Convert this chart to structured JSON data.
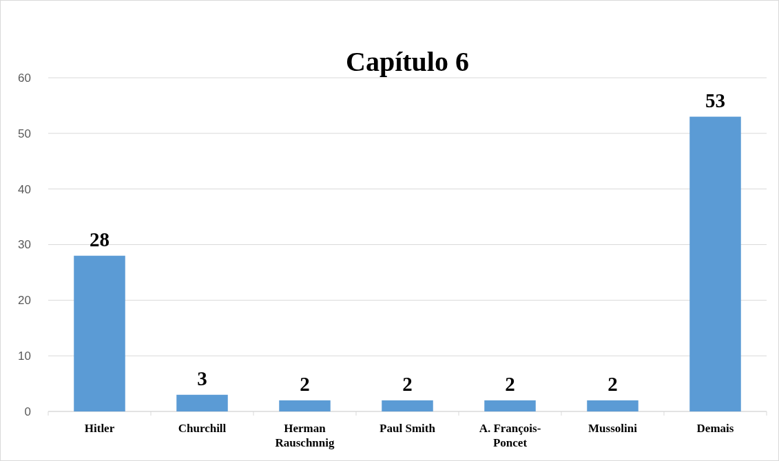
{
  "chart_data": {
    "type": "bar",
    "title": "Capítulo 6",
    "categories": [
      "Hitler",
      "Churchill",
      "Herman Rauschnnig",
      "Paul Smith",
      "A. François-Poncet",
      "Mussolini",
      "Demais"
    ],
    "values": [
      28,
      3,
      2,
      2,
      2,
      2,
      53
    ],
    "color": "#5b9bd5",
    "ylim": [
      0,
      60
    ],
    "yticks": [
      0,
      10,
      20,
      30,
      40,
      50,
      60
    ],
    "grid": "y",
    "data_labels": true
  }
}
